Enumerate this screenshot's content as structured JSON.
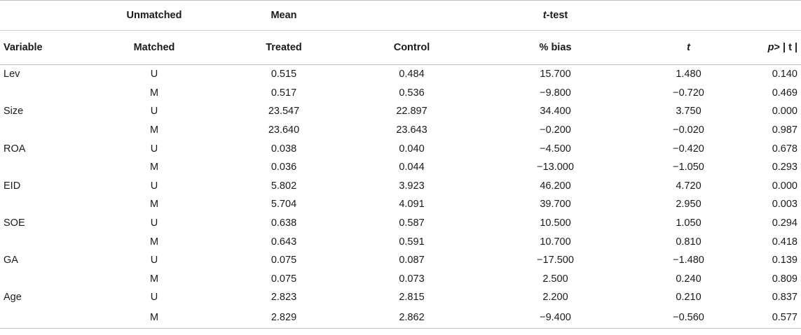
{
  "header_row1": {
    "unmatched": "Unmatched",
    "mean": "Mean",
    "ttest_t": "t",
    "ttest_rest": "-test"
  },
  "header_row2": {
    "variable": "Variable",
    "matched": "Matched",
    "treated": "Treated",
    "control": "Control",
    "bias": "% bias",
    "t": "t",
    "p_prefix": "p",
    "p_suffix": "> | t |"
  },
  "rows": [
    {
      "variable": "Lev",
      "sample": "U",
      "treated": "0.515",
      "control": "0.484",
      "bias": "15.700",
      "t": "1.480",
      "p": "0.140"
    },
    {
      "variable": "",
      "sample": "M",
      "treated": "0.517",
      "control": "0.536",
      "bias": "−9.800",
      "t": "−0.720",
      "p": "0.469"
    },
    {
      "variable": "Size",
      "sample": "U",
      "treated": "23.547",
      "control": "22.897",
      "bias": "34.400",
      "t": "3.750",
      "p": "0.000"
    },
    {
      "variable": "",
      "sample": "M",
      "treated": "23.640",
      "control": "23.643",
      "bias": "−0.200",
      "t": "−0.020",
      "p": "0.987"
    },
    {
      "variable": "ROA",
      "sample": "U",
      "treated": "0.038",
      "control": "0.040",
      "bias": "−4.500",
      "t": "−0.420",
      "p": "0.678"
    },
    {
      "variable": "",
      "sample": "M",
      "treated": "0.036",
      "control": "0.044",
      "bias": "−13.000",
      "t": "−1.050",
      "p": "0.293"
    },
    {
      "variable": "EID",
      "sample": "U",
      "treated": "5.802",
      "control": "3.923",
      "bias": "46.200",
      "t": "4.720",
      "p": "0.000"
    },
    {
      "variable": "",
      "sample": "M",
      "treated": "5.704",
      "control": "4.091",
      "bias": "39.700",
      "t": "2.950",
      "p": "0.003"
    },
    {
      "variable": "SOE",
      "sample": "U",
      "treated": "0.638",
      "control": "0.587",
      "bias": "10.500",
      "t": "1.050",
      "p": "0.294"
    },
    {
      "variable": "",
      "sample": "M",
      "treated": "0.643",
      "control": "0.591",
      "bias": "10.700",
      "t": "0.810",
      "p": "0.418"
    },
    {
      "variable": "GA",
      "sample": "U",
      "treated": "0.075",
      "control": "0.087",
      "bias": "−17.500",
      "t": "−1.480",
      "p": "0.139"
    },
    {
      "variable": "",
      "sample": "M",
      "treated": "0.075",
      "control": "0.073",
      "bias": "2.500",
      "t": "0.240",
      "p": "0.809"
    },
    {
      "variable": "Age",
      "sample": "U",
      "treated": "2.823",
      "control": "2.815",
      "bias": "2.200",
      "t": "0.210",
      "p": "0.837"
    },
    {
      "variable": "",
      "sample": "M",
      "treated": "2.829",
      "control": "2.862",
      "bias": "−9.400",
      "t": "−0.560",
      "p": "0.577"
    }
  ]
}
